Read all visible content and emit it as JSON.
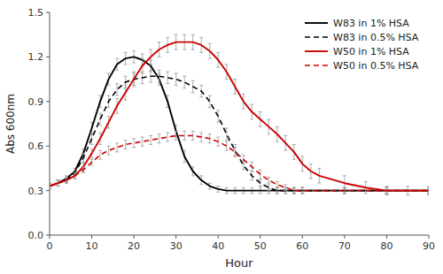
{
  "chart_data": {
    "type": "line",
    "xlabel": "Hour",
    "ylabel": "Abs 600nm",
    "xlim": [
      0,
      90
    ],
    "ylim": [
      0,
      1.5
    ],
    "xticks": [
      0,
      10,
      20,
      30,
      40,
      50,
      60,
      70,
      80,
      90
    ],
    "yticks": [
      {
        "value": 0,
        "label": "0.0"
      },
      0.3,
      0.6,
      0.9,
      1.2,
      1.5
    ],
    "grid": false,
    "legend": "upper right",
    "series": [
      {
        "name": "W83 in 1% HSA",
        "color": "#000000",
        "line_style": "solid",
        "x": [
          0,
          2,
          4,
          6,
          8,
          10,
          12,
          14,
          16,
          18,
          20,
          22,
          24,
          26,
          28,
          30,
          32,
          34,
          36,
          38,
          40,
          42,
          44,
          46,
          48,
          50,
          52,
          54,
          56,
          58,
          60,
          70,
          80,
          90
        ],
        "values": [
          0.33,
          0.35,
          0.38,
          0.43,
          0.55,
          0.72,
          0.9,
          1.05,
          1.15,
          1.19,
          1.2,
          1.18,
          1.14,
          1.05,
          0.9,
          0.7,
          0.53,
          0.43,
          0.37,
          0.33,
          0.31,
          0.3,
          0.3,
          0.3,
          0.3,
          0.3,
          0.3,
          0.3,
          0.3,
          0.3,
          0.3,
          0.3,
          0.3,
          0.3
        ],
        "errors": [
          0.02,
          0.02,
          0.02,
          0.02,
          0.03,
          0.04,
          0.04,
          0.04,
          0.04,
          0.04,
          0.04,
          0.04,
          0.04,
          0.04,
          0.04,
          0.04,
          0.04,
          0.03,
          0.03,
          0.02,
          0.02,
          0.02,
          0.02,
          0.02,
          0.02,
          0.02,
          0.02,
          0.02,
          0.02,
          0.02,
          0.02,
          0.02,
          0.02,
          0.02
        ]
      },
      {
        "name": "W83 in 0.5% HSA",
        "color": "#000000",
        "line_style": "dashed",
        "x": [
          0,
          2,
          4,
          6,
          8,
          10,
          12,
          14,
          16,
          18,
          20,
          22,
          24,
          26,
          28,
          30,
          32,
          34,
          36,
          38,
          40,
          42,
          44,
          46,
          48,
          50,
          52,
          54,
          56,
          58,
          60,
          70,
          80,
          90
        ],
        "values": [
          0.33,
          0.35,
          0.37,
          0.42,
          0.52,
          0.65,
          0.78,
          0.9,
          0.98,
          1.03,
          1.05,
          1.06,
          1.07,
          1.07,
          1.06,
          1.05,
          1.03,
          1.0,
          0.97,
          0.9,
          0.8,
          0.68,
          0.57,
          0.47,
          0.4,
          0.35,
          0.32,
          0.3,
          0.3,
          0.3,
          0.3,
          0.3,
          0.3,
          0.3
        ],
        "errors": [
          0.02,
          0.02,
          0.02,
          0.02,
          0.03,
          0.04,
          0.04,
          0.04,
          0.04,
          0.04,
          0.04,
          0.04,
          0.04,
          0.04,
          0.04,
          0.04,
          0.04,
          0.04,
          0.04,
          0.04,
          0.04,
          0.04,
          0.04,
          0.03,
          0.03,
          0.02,
          0.02,
          0.02,
          0.02,
          0.02,
          0.02,
          0.02,
          0.02,
          0.02
        ]
      },
      {
        "name": "W50 in 1% HSA",
        "color": "#cc0000",
        "line_style": "solid",
        "x": [
          0,
          2,
          4,
          6,
          8,
          10,
          12,
          14,
          16,
          18,
          20,
          22,
          24,
          26,
          28,
          30,
          32,
          34,
          36,
          38,
          40,
          42,
          44,
          46,
          48,
          50,
          52,
          54,
          56,
          58,
          60,
          62,
          64,
          70,
          75,
          80,
          85,
          90
        ],
        "values": [
          0.33,
          0.35,
          0.37,
          0.4,
          0.46,
          0.55,
          0.65,
          0.76,
          0.87,
          0.96,
          1.05,
          1.14,
          1.2,
          1.25,
          1.28,
          1.3,
          1.3,
          1.3,
          1.28,
          1.24,
          1.18,
          1.1,
          1.0,
          0.9,
          0.83,
          0.78,
          0.73,
          0.68,
          0.62,
          0.56,
          0.48,
          0.43,
          0.4,
          0.35,
          0.32,
          0.3,
          0.3,
          0.3
        ],
        "errors": [
          0.02,
          0.02,
          0.02,
          0.02,
          0.03,
          0.03,
          0.04,
          0.04,
          0.05,
          0.05,
          0.05,
          0.05,
          0.05,
          0.05,
          0.05,
          0.05,
          0.05,
          0.05,
          0.05,
          0.05,
          0.05,
          0.05,
          0.05,
          0.05,
          0.05,
          0.05,
          0.05,
          0.05,
          0.05,
          0.05,
          0.05,
          0.05,
          0.05,
          0.05,
          0.04,
          0.03,
          0.03,
          0.03
        ]
      },
      {
        "name": "W50 in 0.5% HSA",
        "color": "#cc0000",
        "line_style": "dashed",
        "x": [
          0,
          2,
          4,
          6,
          8,
          10,
          12,
          14,
          16,
          18,
          20,
          22,
          24,
          26,
          28,
          30,
          32,
          34,
          36,
          38,
          40,
          42,
          44,
          46,
          48,
          50,
          52,
          54,
          56,
          58,
          60,
          70,
          80,
          90
        ],
        "values": [
          0.33,
          0.35,
          0.37,
          0.4,
          0.44,
          0.49,
          0.54,
          0.57,
          0.59,
          0.61,
          0.62,
          0.63,
          0.64,
          0.65,
          0.66,
          0.67,
          0.67,
          0.67,
          0.66,
          0.65,
          0.63,
          0.6,
          0.56,
          0.51,
          0.46,
          0.41,
          0.37,
          0.34,
          0.32,
          0.3,
          0.3,
          0.3,
          0.3,
          0.3
        ],
        "errors": [
          0.02,
          0.02,
          0.02,
          0.02,
          0.02,
          0.02,
          0.03,
          0.03,
          0.03,
          0.03,
          0.03,
          0.03,
          0.03,
          0.03,
          0.03,
          0.03,
          0.03,
          0.03,
          0.03,
          0.03,
          0.03,
          0.03,
          0.03,
          0.03,
          0.03,
          0.03,
          0.02,
          0.02,
          0.02,
          0.02,
          0.02,
          0.02,
          0.02,
          0.02
        ]
      }
    ]
  }
}
